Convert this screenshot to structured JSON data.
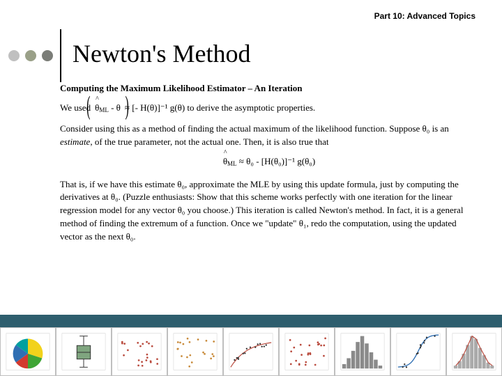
{
  "header": {
    "part_label": "Part 10: Advanced Topics"
  },
  "dots": {
    "colors": [
      "#c0c0c0",
      "#9aa088",
      "#7b7d78"
    ]
  },
  "title": "Newton's Method",
  "body": {
    "section_header": "Computing the Maximum Likelihood Estimator – An Iteration",
    "line1_prefix": "We used   ",
    "line1_theta_ml": "θ",
    "line1_ml_sub": "ML",
    "line1_minus": "   -   θ",
    "line1_suffix": "   ≈   [- H(θ)]⁻¹ g(θ)   to derive the asymptotic properties.",
    "para1": "Consider using this as a method of finding the actual maximum of the likelihood function.  Suppose θ₀ is an",
    "para1_ital": " estimate",
    "para1_cont": ", of the true parameter, not the actual one.  Then, it is also true that",
    "eq2_theta": "θ",
    "eq2_ml": "ML",
    "eq2_rest": "   ≈   θ₀  -  [H(θ₀)]⁻¹ g(θ₀)",
    "para2": "That is, if we have this estimate θ₀, approximate the MLE by using this update formula,  just by computing the derivatives at θ₀.  (Puzzle enthusiasts:  Show that this scheme works perfectly with one iteration for the linear regression model for any vector θ₀ you choose.)  This iteration is called Newton's method.  In fact, it is a general method of finding the extremum of a function.  Once we \"update\" θ₁, redo the computation, using the updated vector as the next θ₀."
  },
  "bottom_bar_color": "#2e5e6e",
  "thumbs": [
    {
      "title": "Pie Chart",
      "type": "pie",
      "colors": [
        "#f2d21b",
        "#3fa535",
        "#d33a2f",
        "#2f6fb3",
        "#00a0a0"
      ],
      "slices": [
        30,
        20,
        15,
        20,
        15
      ]
    },
    {
      "title": "Boxplot",
      "type": "box",
      "box_color": "#7fa57f",
      "whisker_color": "#333"
    },
    {
      "title": "Scatter 1",
      "type": "scatter",
      "pt_color": "#b94a3d",
      "n": 22
    },
    {
      "title": "Scatter 2",
      "type": "scatter",
      "pt_color": "#c88a3a",
      "n": 20
    },
    {
      "title": "Curve Fit",
      "type": "curve",
      "line_color": "#b94a3d",
      "pt_color": "#333"
    },
    {
      "title": "Scatter 3",
      "type": "scatter",
      "pt_color": "#b94a3d",
      "n": 24
    },
    {
      "title": "Histogram",
      "type": "hist",
      "bar_color": "#8a8a8a",
      "bins": [
        3,
        7,
        12,
        18,
        22,
        17,
        11,
        6,
        2
      ]
    },
    {
      "title": "Logistic",
      "type": "logistic",
      "line_color": "#2f6fb3",
      "pt_color": "#333"
    },
    {
      "title": "Hist + Curve",
      "type": "histcurve",
      "bar_color": "#aaa",
      "line_color": "#b94a3d",
      "bins": [
        2,
        5,
        10,
        16,
        22,
        20,
        14,
        9,
        4,
        2
      ]
    }
  ]
}
